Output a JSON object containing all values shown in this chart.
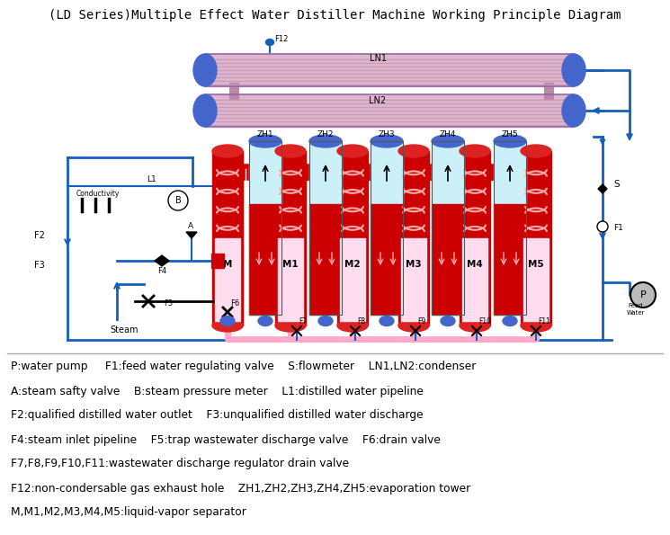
{
  "title": "(LD Series)Multiple Effect Water Distiller Machine Working Principle Diagram",
  "title_fontsize": 10,
  "bg_color": "#ffffff",
  "legend_lines": [
    "P:water pump     F1:feed water regulating valve    S:flowmeter    LN1,LN2:condenser",
    "A:steam safty valve    B:steam pressure meter    L1:distilled water pipeline",
    "F2:qualified distilled water outlet    F3:unqualified distilled water discharge",
    "F4:steam inlet pipeline    F5:trap wastewater discharge valve    F6:drain valve",
    "F7,F8,F9,F10,F11:wastewater discharge regulator drain valve",
    "F12:non-condersable gas exhaust hole    ZH1,ZH2,ZH3,ZH4,ZH5:evaporation tower",
    "M,M1,M2,M3,M4,M5:liquid-vapor separator"
  ],
  "blue": "#1560bd",
  "red": "#cc0000",
  "light_red": "#ff6666",
  "pink": "#ffaacc",
  "light_pink": "#ffddee",
  "cyan": "#88ddee",
  "light_cyan": "#ccf0f8",
  "condenser_body": "#ddb8cc",
  "condenser_stripe": "#cc99bb",
  "condenser_cap": "#4466cc",
  "black": "#000000",
  "gray": "#888888",
  "dark_gray": "#444444"
}
